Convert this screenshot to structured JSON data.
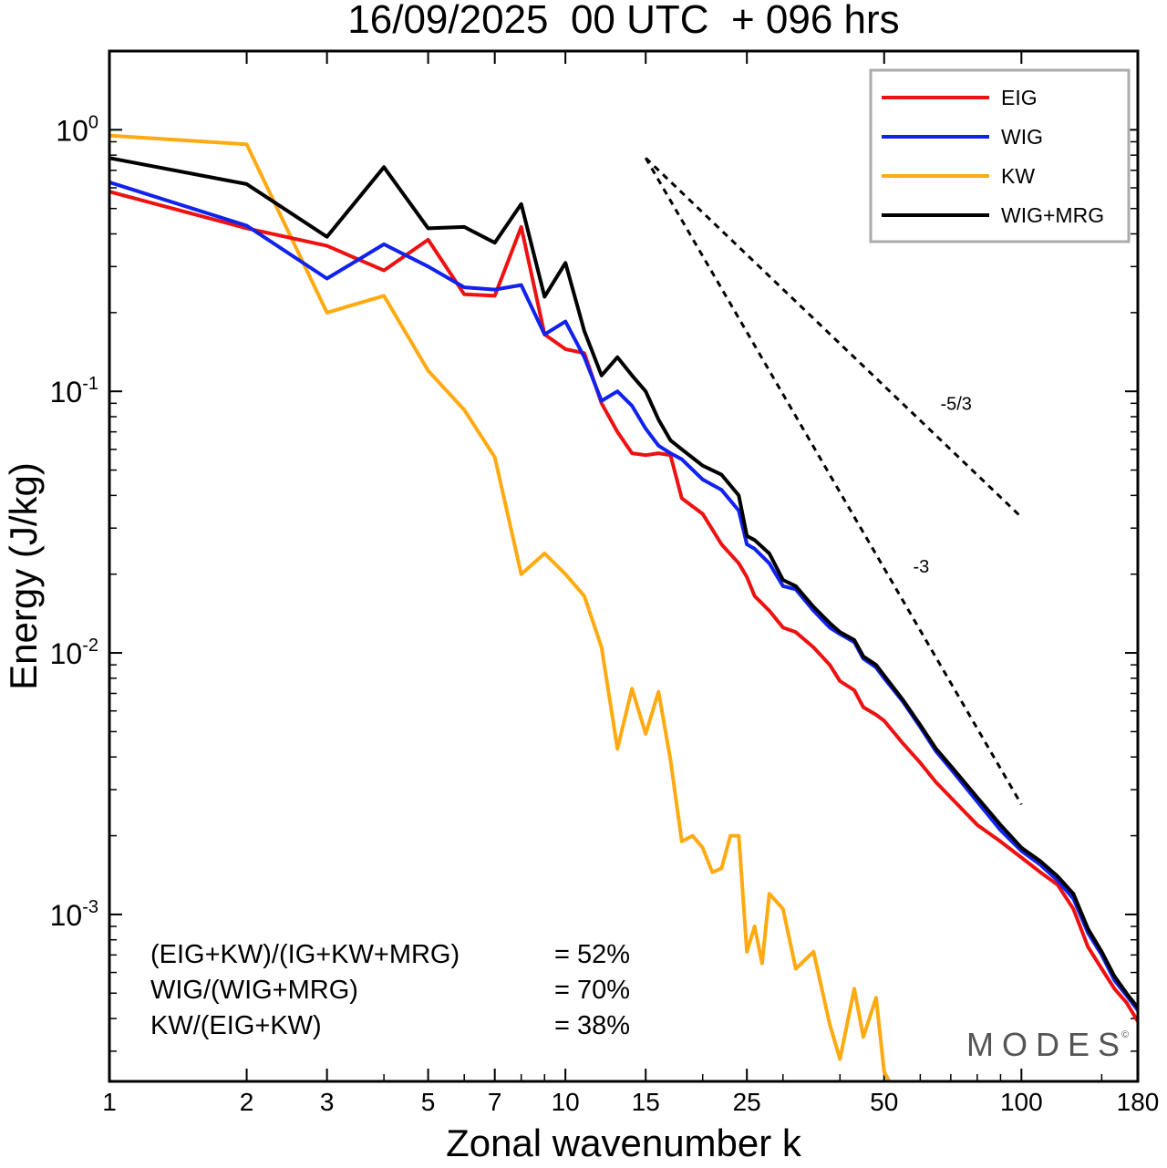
{
  "chart_data": {
    "type": "line",
    "title": "16/09/2025  00 UTC  + 096 hrs",
    "xlabel": "Zonal wavenumber k",
    "ylabel": "Energy (J/kg)",
    "xscale": "log",
    "yscale": "log",
    "xlim": [
      1,
      180
    ],
    "ylim": [
      0.00023,
      2.0
    ],
    "xticks": [
      {
        "value": 1,
        "label": "1"
      },
      {
        "value": 2,
        "label": "2"
      },
      {
        "value": 3,
        "label": "3"
      },
      {
        "value": 5,
        "label": "5"
      },
      {
        "value": 7,
        "label": "7"
      },
      {
        "value": 10,
        "label": "10"
      },
      {
        "value": 15,
        "label": "15"
      },
      {
        "value": 25,
        "label": "25"
      },
      {
        "value": 50,
        "label": "50"
      },
      {
        "value": 100,
        "label": "100"
      },
      {
        "value": 180,
        "label": "180"
      }
    ],
    "yticks": [
      {
        "value": 1,
        "base": "10",
        "exp": "0"
      },
      {
        "value": 0.1,
        "base": "10",
        "exp": "-1"
      },
      {
        "value": 0.01,
        "base": "10",
        "exp": "-2"
      },
      {
        "value": 0.001,
        "base": "10",
        "exp": "-3"
      }
    ],
    "legend_position": "top-right",
    "series": [
      {
        "name": "EIG",
        "color": "#ee1111",
        "x": [
          1,
          2,
          3,
          4,
          5,
          6,
          7,
          8,
          9,
          10,
          11,
          12,
          13,
          14,
          15,
          16,
          17,
          18,
          20,
          22,
          24,
          25,
          26,
          28,
          30,
          32,
          35,
          38,
          40,
          43,
          45,
          48,
          50,
          55,
          60,
          65,
          70,
          80,
          90,
          100,
          110,
          120,
          130,
          140,
          150,
          160,
          170,
          180
        ],
        "y": [
          0.58,
          0.42,
          0.36,
          0.29,
          0.38,
          0.235,
          0.232,
          0.425,
          0.165,
          0.145,
          0.14,
          0.09,
          0.07,
          0.058,
          0.057,
          0.058,
          0.057,
          0.039,
          0.034,
          0.026,
          0.022,
          0.0195,
          0.0165,
          0.0145,
          0.0125,
          0.012,
          0.0105,
          0.009,
          0.0078,
          0.0072,
          0.0062,
          0.0058,
          0.0055,
          0.0045,
          0.0038,
          0.0032,
          0.0028,
          0.0022,
          0.0019,
          0.00165,
          0.00145,
          0.0013,
          0.00105,
          0.00075,
          0.00062,
          0.00052,
          0.00046,
          0.00039
        ]
      },
      {
        "name": "WIG",
        "color": "#1122ee",
        "x": [
          1,
          2,
          3,
          4,
          5,
          6,
          7,
          8,
          9,
          10,
          11,
          12,
          13,
          14,
          15,
          16,
          17,
          18,
          20,
          22,
          24,
          25,
          26,
          28,
          30,
          32,
          35,
          38,
          40,
          43,
          45,
          48,
          50,
          55,
          60,
          65,
          70,
          80,
          90,
          100,
          110,
          120,
          130,
          140,
          150,
          160,
          170,
          180
        ],
        "y": [
          0.63,
          0.43,
          0.27,
          0.365,
          0.3,
          0.25,
          0.245,
          0.255,
          0.165,
          0.185,
          0.135,
          0.092,
          0.1,
          0.088,
          0.072,
          0.062,
          0.058,
          0.055,
          0.046,
          0.042,
          0.035,
          0.026,
          0.025,
          0.022,
          0.018,
          0.0175,
          0.0145,
          0.0125,
          0.0118,
          0.011,
          0.0095,
          0.0088,
          0.008,
          0.0065,
          0.0052,
          0.0042,
          0.0036,
          0.0027,
          0.0021,
          0.00175,
          0.00155,
          0.00135,
          0.00115,
          0.00085,
          0.0007,
          0.00056,
          0.00049,
          0.00043
        ]
      },
      {
        "name": "KW",
        "color": "#ffaa11",
        "x": [
          1,
          2,
          3,
          4,
          5,
          6,
          7,
          8,
          9,
          10,
          11,
          12,
          13,
          14,
          15,
          16,
          17,
          18,
          19,
          20,
          21,
          22,
          23,
          24,
          25,
          26,
          27,
          28,
          30,
          32,
          35,
          38,
          40,
          43,
          45,
          48,
          50,
          52
        ],
        "y": [
          0.95,
          0.88,
          0.2,
          0.232,
          0.12,
          0.085,
          0.056,
          0.02,
          0.024,
          0.02,
          0.0165,
          0.0105,
          0.0043,
          0.0073,
          0.0049,
          0.0071,
          0.0039,
          0.0019,
          0.002,
          0.0018,
          0.00145,
          0.0015,
          0.002,
          0.002,
          0.00072,
          0.0009,
          0.00065,
          0.0012,
          0.00105,
          0.00062,
          0.00072,
          0.00038,
          0.00028,
          0.00052,
          0.00034,
          0.00048,
          0.00025,
          0.00022
        ]
      },
      {
        "name": "WIG+MRG",
        "color": "#000000",
        "x": [
          1,
          2,
          3,
          4,
          5,
          6,
          7,
          8,
          9,
          10,
          11,
          12,
          13,
          14,
          15,
          16,
          17,
          18,
          20,
          22,
          24,
          25,
          26,
          28,
          30,
          32,
          35,
          38,
          40,
          43,
          45,
          48,
          50,
          55,
          60,
          65,
          70,
          80,
          90,
          100,
          110,
          120,
          130,
          140,
          150,
          160,
          170,
          180
        ],
        "y": [
          0.78,
          0.62,
          0.39,
          0.72,
          0.42,
          0.425,
          0.37,
          0.52,
          0.23,
          0.31,
          0.17,
          0.115,
          0.135,
          0.115,
          0.1,
          0.078,
          0.065,
          0.06,
          0.052,
          0.048,
          0.04,
          0.028,
          0.027,
          0.024,
          0.019,
          0.018,
          0.015,
          0.013,
          0.012,
          0.0112,
          0.0097,
          0.009,
          0.0082,
          0.0066,
          0.0053,
          0.0043,
          0.0037,
          0.0028,
          0.0022,
          0.0018,
          0.0016,
          0.0014,
          0.0012,
          0.00088,
          0.00072,
          0.00058,
          0.0005,
          0.00044
        ]
      }
    ],
    "reference_lines": [
      {
        "label": "-5/3",
        "slope": -1.6667,
        "x_start": 15,
        "x_end": 100,
        "y_start": 0.78
      },
      {
        "label": "-3",
        "slope": -3,
        "x_start": 15,
        "x_end": 100,
        "y_start": 0.78
      }
    ],
    "annotations": [
      {
        "label": "(EIG+KW)/(IG+KW+MRG)",
        "value": "= 52%"
      },
      {
        "label": "WIG/(WIG+MRG)",
        "value": "= 70%"
      },
      {
        "label": "KW/(EIG+KW)",
        "value": "= 38%"
      }
    ],
    "watermark": "MODES",
    "watermark_symbol": "©"
  }
}
